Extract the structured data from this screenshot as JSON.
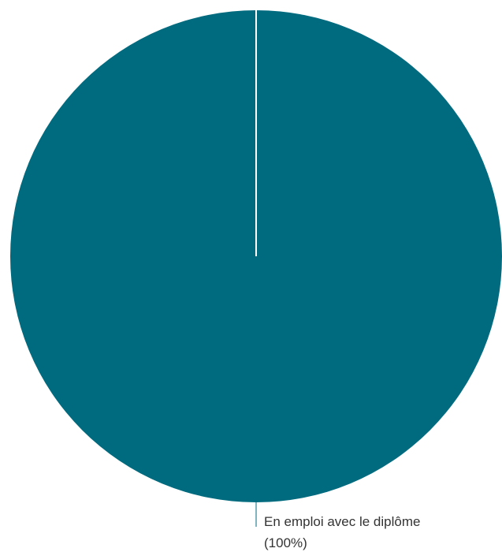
{
  "chart_data": {
    "type": "pie",
    "slices": [
      {
        "label": "En emploi avec le diplôme",
        "value": 100,
        "percent_label": "(100%)"
      }
    ],
    "colors": {
      "slice": "#006a7e",
      "separator": "#ffffff",
      "leader_line": "#006a7e",
      "label_text": "#333333"
    },
    "legend": "none"
  }
}
